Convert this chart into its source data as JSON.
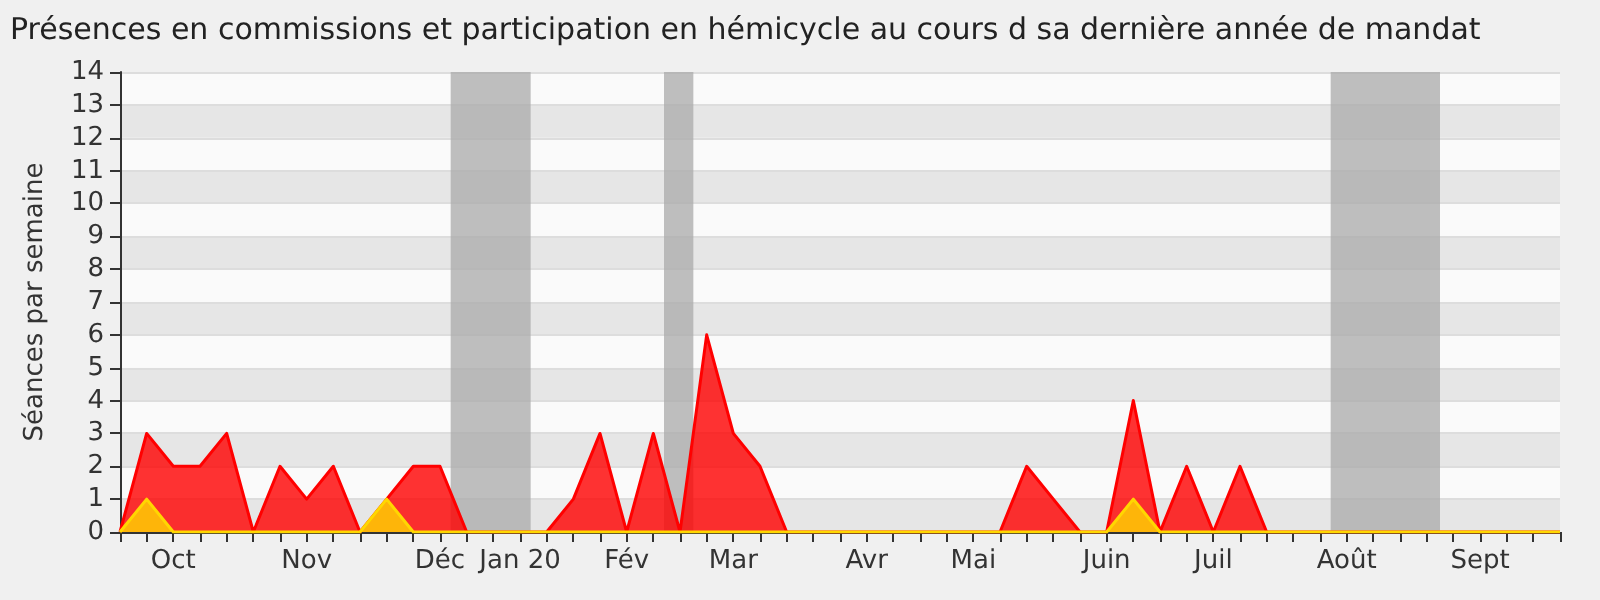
{
  "chart_data": {
    "type": "area",
    "title": "Présences en commissions et participation en hémicycle au cours d sa dernière année de mandat",
    "ylabel": "Séances par semaine",
    "categories": [
      null,
      null,
      "Oct",
      null,
      null,
      null,
      null,
      "Nov",
      null,
      null,
      null,
      null,
      "Déc",
      null,
      null,
      "Jan 20",
      null,
      null,
      null,
      "Fév",
      null,
      null,
      null,
      "Mar",
      null,
      null,
      null,
      null,
      "Avr",
      null,
      null,
      null,
      "Mai",
      null,
      null,
      null,
      null,
      "Juin",
      null,
      null,
      null,
      "Juil",
      null,
      null,
      null,
      null,
      "Août",
      null,
      null,
      null,
      null,
      "Sept",
      null,
      null,
      null
    ],
    "ylim": [
      0,
      14
    ],
    "yticks": [
      0,
      1,
      2,
      3,
      4,
      5,
      6,
      7,
      8,
      9,
      10,
      11,
      12,
      13,
      14
    ],
    "grid": "y",
    "marker": "none",
    "line_style": "solid",
    "series": [
      {
        "color": "#ff0000",
        "values": [
          0,
          3,
          2,
          2,
          3,
          0,
          2,
          1,
          2,
          0,
          1,
          2,
          2,
          0,
          0,
          0,
          0,
          1,
          3,
          0,
          3,
          0,
          6,
          3,
          2,
          0,
          0,
          0,
          0,
          0,
          0,
          0,
          0,
          0,
          2,
          1,
          0,
          0,
          4,
          0,
          2,
          0,
          2,
          0,
          0,
          0,
          0,
          0,
          0,
          0,
          0,
          0,
          0,
          0,
          0
        ]
      },
      {
        "color": "#ffd700",
        "values": [
          0,
          1,
          0,
          0,
          0,
          0,
          0,
          0,
          0,
          0,
          1,
          0,
          0,
          0,
          0,
          0,
          0,
          0,
          0,
          0,
          0,
          0,
          0,
          0,
          0,
          0,
          0,
          0,
          0,
          0,
          0,
          0,
          0,
          0,
          0,
          0,
          0,
          0,
          1,
          0,
          0,
          0,
          0,
          0,
          0,
          0,
          0,
          0,
          0,
          0,
          0,
          0,
          0,
          0,
          0
        ]
      }
    ]
  }
}
